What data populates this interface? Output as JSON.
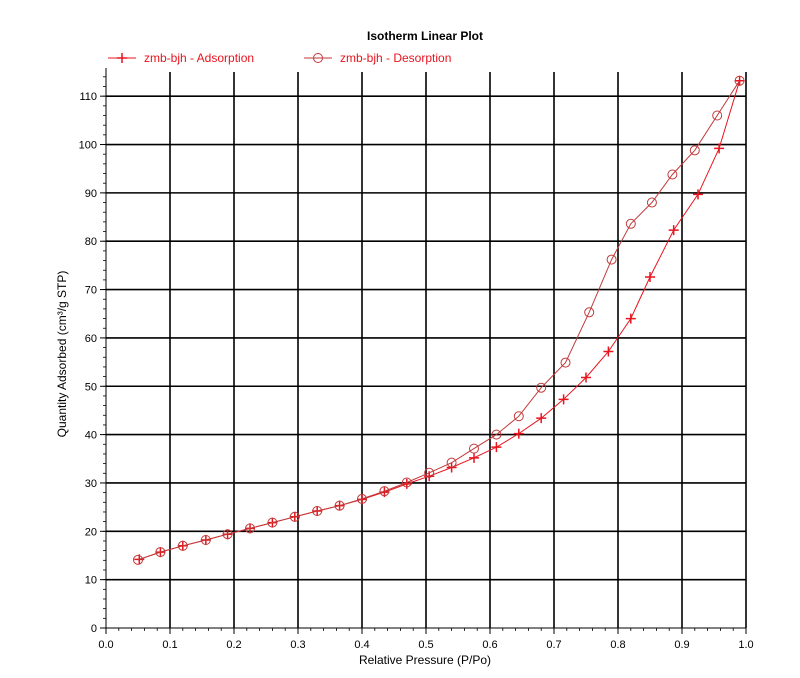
{
  "chart_data": {
    "type": "line",
    "title": "Isotherm Linear Plot",
    "xlabel": "Relative Pressure (P/Po)",
    "ylabel": "Quantity Adsorbed (cm³/g STP)",
    "xlim": [
      0,
      1.0
    ],
    "ylim": [
      0,
      115
    ],
    "x_ticks": [
      0.0,
      0.1,
      0.2,
      0.3,
      0.4,
      0.5,
      0.6,
      0.7,
      0.8,
      0.9,
      1.0
    ],
    "x_tick_labels": [
      "0.0",
      "0.1",
      "0.2",
      "0.3",
      "0.4",
      "0.5",
      "0.6",
      "0.7",
      "0.8",
      "0.9",
      "1.0"
    ],
    "y_ticks": [
      0,
      10,
      20,
      30,
      40,
      50,
      60,
      70,
      80,
      90,
      100,
      110
    ],
    "y_tick_labels": [
      "0",
      "10",
      "20",
      "30",
      "40",
      "50",
      "60",
      "70",
      "80",
      "90",
      "100",
      "110"
    ],
    "grid": true,
    "legend_position": "top-left",
    "series": [
      {
        "name": "zmb-bjh - Adsorption",
        "marker": "plus",
        "color": "#e8141e",
        "points": [
          [
            0.052,
            14.2
          ],
          [
            0.085,
            15.7
          ],
          [
            0.12,
            17.0
          ],
          [
            0.156,
            18.2
          ],
          [
            0.19,
            19.4
          ],
          [
            0.225,
            20.6
          ],
          [
            0.26,
            21.8
          ],
          [
            0.295,
            23.0
          ],
          [
            0.33,
            24.2
          ],
          [
            0.365,
            25.3
          ],
          [
            0.4,
            26.6
          ],
          [
            0.435,
            28.1
          ],
          [
            0.47,
            29.8
          ],
          [
            0.505,
            31.4
          ],
          [
            0.54,
            33.2
          ],
          [
            0.575,
            35.2
          ],
          [
            0.61,
            37.4
          ],
          [
            0.645,
            40.2
          ],
          [
            0.68,
            43.4
          ],
          [
            0.715,
            47.3
          ],
          [
            0.75,
            51.8
          ],
          [
            0.785,
            57.2
          ],
          [
            0.82,
            64.0
          ],
          [
            0.85,
            72.6
          ],
          [
            0.887,
            82.3
          ],
          [
            0.925,
            89.7
          ],
          [
            0.958,
            99.2
          ],
          [
            0.99,
            113.2
          ]
        ]
      },
      {
        "name": "zmb-bjh - Desorption",
        "marker": "circle",
        "color": "#e8141e",
        "points": [
          [
            0.99,
            113.2
          ],
          [
            0.955,
            106.0
          ],
          [
            0.92,
            98.8
          ],
          [
            0.885,
            93.8
          ],
          [
            0.853,
            88.0
          ],
          [
            0.82,
            83.6
          ],
          [
            0.79,
            76.2
          ],
          [
            0.755,
            65.3
          ],
          [
            0.718,
            54.9
          ],
          [
            0.68,
            49.7
          ],
          [
            0.645,
            43.8
          ],
          [
            0.61,
            40.0
          ],
          [
            0.575,
            37.1
          ],
          [
            0.54,
            34.2
          ],
          [
            0.505,
            32.1
          ],
          [
            0.47,
            30.1
          ],
          [
            0.435,
            28.3
          ],
          [
            0.4,
            26.7
          ],
          [
            0.365,
            25.3
          ],
          [
            0.33,
            24.2
          ],
          [
            0.295,
            23.0
          ],
          [
            0.26,
            21.8
          ],
          [
            0.225,
            20.6
          ],
          [
            0.19,
            19.4
          ],
          [
            0.156,
            18.2
          ],
          [
            0.12,
            17.0
          ],
          [
            0.085,
            15.7
          ],
          [
            0.05,
            14.1
          ]
        ]
      }
    ]
  }
}
